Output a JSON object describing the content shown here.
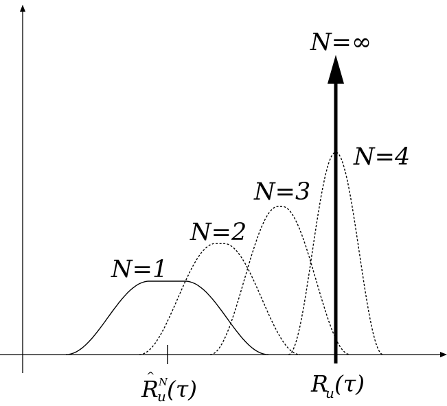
{
  "curves": [
    {
      "label": "N=1",
      "style": "solid"
    },
    {
      "label": "N=2",
      "style": "dotted"
    },
    {
      "label": "N=3",
      "style": "dotted"
    },
    {
      "label": "N=4",
      "style": "dotted"
    }
  ],
  "limit": {
    "label": "N=∞"
  },
  "x_ticks": {
    "estimate": {
      "base": "R",
      "hat": "^",
      "sub": "u",
      "sup": "N",
      "arg": "(τ)"
    },
    "true": {
      "base": "R",
      "sub": "u",
      "arg": "(τ)"
    }
  }
}
